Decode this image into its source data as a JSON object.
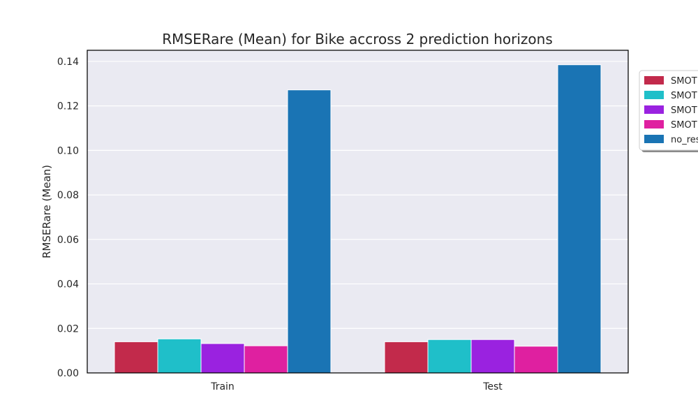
{
  "chart_data": {
    "type": "bar",
    "title": "RMSERare (Mean) for Bike accross 2 prediction horizons",
    "xlabel": "",
    "ylabel": "RMSERare (Mean)",
    "categories": [
      "Train",
      "Test"
    ],
    "ylim": [
      0,
      0.145
    ],
    "yticks": [
      0.0,
      0.02,
      0.04,
      0.06,
      0.08,
      0.1,
      0.12,
      0.14
    ],
    "ytick_labels": [
      "0.00",
      "0.02",
      "0.04",
      "0.06",
      "0.08",
      "0.10",
      "0.12",
      "0.14"
    ],
    "grid": true,
    "legend_position": "upper right, outside (clipped)",
    "background_color": "#eaeaf2",
    "series": [
      {
        "name": "SMOT",
        "color": "#c22a4b",
        "values": [
          0.014,
          0.014
        ]
      },
      {
        "name": "SMOT",
        "color": "#1fbfc9",
        "values": [
          0.0153,
          0.015
        ]
      },
      {
        "name": "SMOT",
        "color": "#9a22e0",
        "values": [
          0.0132,
          0.015
        ]
      },
      {
        "name": "SMOT",
        "color": "#df20a0",
        "values": [
          0.0122,
          0.012
        ]
      },
      {
        "name": "no_res",
        "color": "#1a74b4",
        "values": [
          0.1272,
          0.1385
        ]
      }
    ]
  }
}
